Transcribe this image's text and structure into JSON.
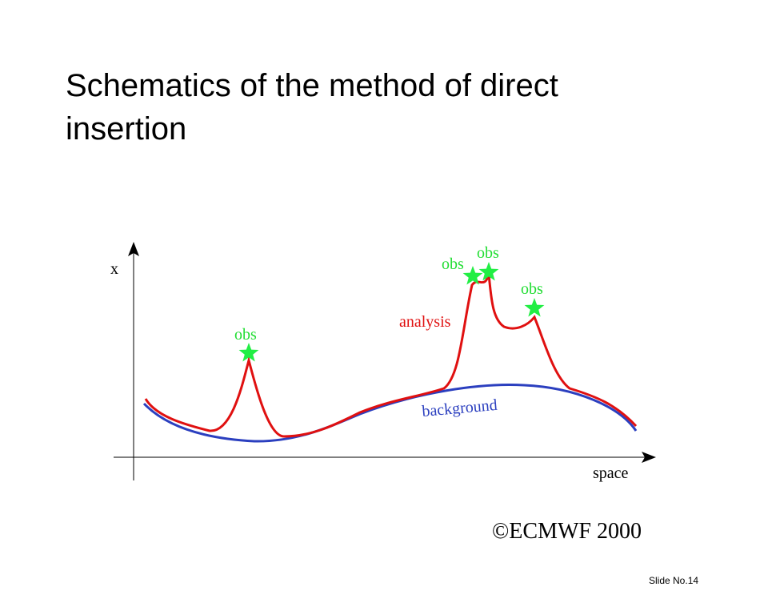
{
  "slide": {
    "title": "Schematics of the method of direct insertion",
    "copyright": "©ECMWF 2000",
    "slide_number": "Slide No.14"
  },
  "diagram": {
    "y_axis_label": "x",
    "x_axis_label": "space",
    "background_label": "background",
    "analysis_label": "analysis",
    "obs_labels": [
      "obs",
      "obs",
      "obs",
      "obs"
    ],
    "colors": {
      "background": "#2b3fbf",
      "analysis": "#e01010",
      "obs_star": "#22ee44",
      "obs_text": "#22dd33",
      "axis": "#000000"
    }
  }
}
